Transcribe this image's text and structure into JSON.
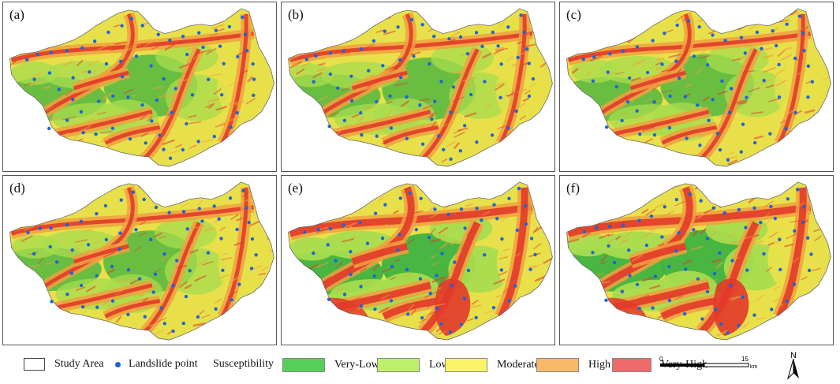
{
  "panels": [
    {
      "id": "a",
      "label": "(a)"
    },
    {
      "id": "b",
      "label": "(b)"
    },
    {
      "id": "c",
      "label": "(c)"
    },
    {
      "id": "d",
      "label": "(d)"
    },
    {
      "id": "e",
      "label": "(e)"
    },
    {
      "id": "f",
      "label": "(f)"
    }
  ],
  "legend": {
    "study_area_label": "Study Area",
    "landslide_label": "Landslide point",
    "susceptibility_label": "Susceptibility",
    "classes": [
      {
        "label": "Very-Low",
        "color": "#57cf57"
      },
      {
        "label": "Low",
        "color": "#bdf16a"
      },
      {
        "label": "Moderate",
        "color": "#fbf367"
      },
      {
        "label": "High",
        "color": "#f8b968"
      },
      {
        "label": "Very-High",
        "color": "#ef6b6b"
      }
    ],
    "landslide_color": "#1e64d8"
  },
  "scale": {
    "start": "0",
    "end": "15",
    "unit": "km"
  },
  "north": {
    "label": "N"
  },
  "map_colors": {
    "very_low": "#3fb33f",
    "low": "#a8dc4e",
    "moderate": "#e8e04a",
    "high": "#f0a040",
    "very_high": "#e23a2a"
  }
}
